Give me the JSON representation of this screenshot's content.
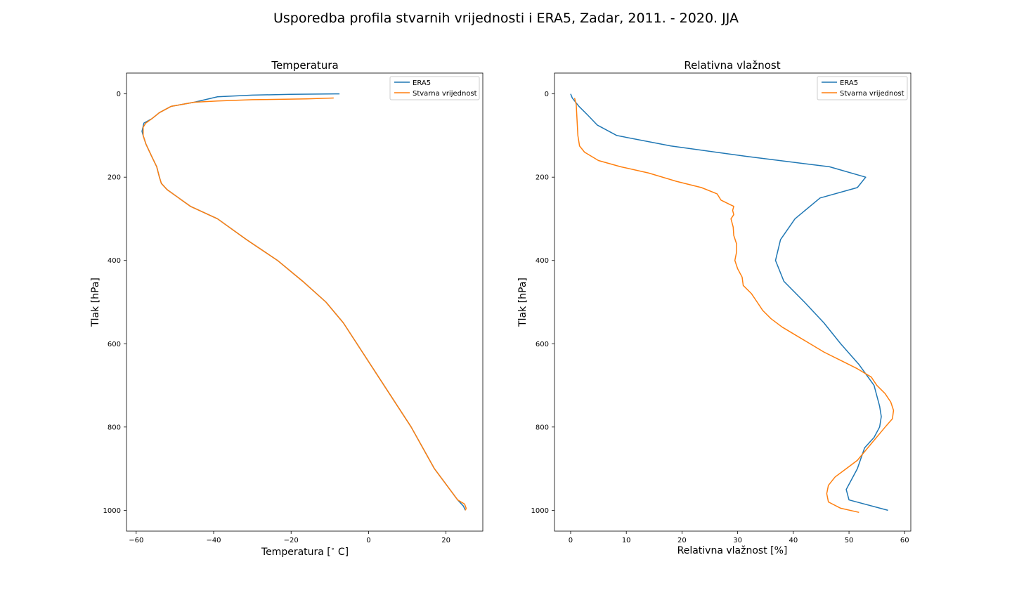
{
  "chart_data": {
    "suptitle": "Usporedba profila stvarnih vrijednosti i ERA5, Zadar, 2011. - 2020. JJA",
    "colors": {
      "ERA5": "#1f77b4",
      "Stvarna vrijednost": "#ff7f0e"
    },
    "panels": [
      {
        "type": "line",
        "title": "Temperatura",
        "xlabel": "Temperatura [$^\\circ$ C]",
        "xlabel_main": "Temperatura [",
        "xlabel_sup": "∘",
        "xlabel_tail": " C]",
        "ylabel": "Tlak [hPa]",
        "xlim": [
          -62.5,
          29.5
        ],
        "ylim": [
          1050,
          -50
        ],
        "y_inverted": true,
        "xticks": [
          -60,
          -40,
          -20,
          0,
          20
        ],
        "xtick_labels": [
          "−60",
          "−40",
          "−20",
          "0",
          "20"
        ],
        "yticks": [
          0,
          200,
          400,
          600,
          800,
          1000
        ],
        "ytick_labels": [
          "0",
          "200",
          "400",
          "600",
          "800",
          "1000"
        ],
        "legend_loc": "upper right",
        "series": [
          {
            "name": "ERA5",
            "x": [
              -7.5,
              -8.5,
              -20,
              -30,
              -39,
              -45,
              -51,
              -54,
              -56,
              -58,
              -58.5,
              -58.2,
              -57.5,
              -56,
              -54.7,
              -54,
              -53.5,
              -52,
              -49,
              -46,
              -39,
              -31.5,
              -23.5,
              -17,
              -11,
              -6.5,
              -3,
              4,
              11,
              17,
              23,
              24.5,
              25
            ],
            "y": [
              0,
              0,
              1,
              3,
              7,
              20,
              30,
              45,
              60,
              70,
              90,
              100,
              120,
              150,
              175,
              200,
              215,
              230,
              250,
              270,
              300,
              350,
              400,
              450,
              500,
              550,
              600,
              700,
              800,
              900,
              975,
              990,
              1000
            ]
          },
          {
            "name": "Stvarna vrijednost",
            "x": [
              -9,
              -16,
              -30,
              -39,
              -45,
              -51,
              -54,
              -56,
              -57.5,
              -58.2,
              -58.2,
              -57.5,
              -56,
              -54.7,
              -54,
              -53.5,
              -52,
              -49,
              -46,
              -39,
              -31.5,
              -23.5,
              -17,
              -11,
              -6.5,
              -3,
              4,
              11,
              17,
              23,
              24.8,
              25.2,
              25
            ],
            "y": [
              10,
              12,
              14,
              17,
              20,
              30,
              45,
              60,
              70,
              80,
              100,
              120,
              150,
              175,
              200,
              215,
              230,
              250,
              270,
              300,
              350,
              400,
              450,
              500,
              550,
              600,
              700,
              800,
              900,
              975,
              985,
              995,
              1000
            ]
          }
        ]
      },
      {
        "type": "line",
        "title": "Relativna vlažnost",
        "xlabel": "Relativna vlažnost [%]",
        "ylabel": "Tlak [hPa]",
        "xlim": [
          -2.9,
          61.1
        ],
        "ylim": [
          1050,
          -50
        ],
        "y_inverted": true,
        "xticks": [
          0,
          10,
          20,
          30,
          40,
          50,
          60
        ],
        "xtick_labels": [
          "0",
          "10",
          "20",
          "30",
          "40",
          "50",
          "60"
        ],
        "yticks": [
          0,
          200,
          400,
          600,
          800,
          1000
        ],
        "ytick_labels": [
          "0",
          "200",
          "400",
          "600",
          "800",
          "1000"
        ],
        "legend_loc": "upper right",
        "series": [
          {
            "name": "ERA5",
            "x": [
              0,
              0.3,
              1.5,
              3,
              4.8,
              8.3,
              18,
              31.5,
              46.5,
              53,
              51.5,
              44.8,
              40.3,
              37.7,
              36.8,
              38.3,
              42,
              45.5,
              48.5,
              51.8,
              54.5,
              55.5,
              55.8,
              55.5,
              54.5,
              52.8,
              51.5,
              49.5,
              50,
              57
            ],
            "y": [
              0,
              10,
              30,
              50,
              75,
              100,
              125,
              150,
              175,
              200,
              225,
              250,
              300,
              350,
              400,
              450,
              500,
              550,
              600,
              650,
              700,
              750,
              775,
              800,
              825,
              850,
              900,
              950,
              975,
              1000
            ]
          },
          {
            "name": "Stvarna vrijednost",
            "x": [
              0.7,
              1,
              1.1,
              1.2,
              1.3,
              1.6,
              2.5,
              5,
              9,
              14,
              19,
              23.5,
              26.3,
              27,
              28.5,
              29.3,
              29.1,
              29.3,
              28.8,
              29.2,
              29.3,
              29.8,
              29.8,
              29.5,
              30,
              30.8,
              31,
              32.5,
              33.5,
              34.5,
              36,
              38,
              40.5,
              43,
              45.5,
              48.5,
              51.5,
              54,
              55,
              56.5,
              57.5,
              58,
              57.8,
              56.5,
              54,
              51.5,
              49.5,
              47.5,
              46.3,
              46,
              46.3,
              48.5,
              51.8
            ],
            "y": [
              10,
              25,
              50,
              75,
              100,
              125,
              140,
              160,
              175,
              190,
              210,
              225,
              240,
              255,
              265,
              270,
              280,
              290,
              300,
              320,
              340,
              360,
              380,
              400,
              420,
              440,
              460,
              480,
              500,
              520,
              540,
              560,
              580,
              600,
              620,
              640,
              660,
              680,
              700,
              720,
              740,
              760,
              780,
              800,
              840,
              880,
              900,
              920,
              940,
              960,
              980,
              995,
              1005
            ]
          }
        ]
      }
    ]
  }
}
